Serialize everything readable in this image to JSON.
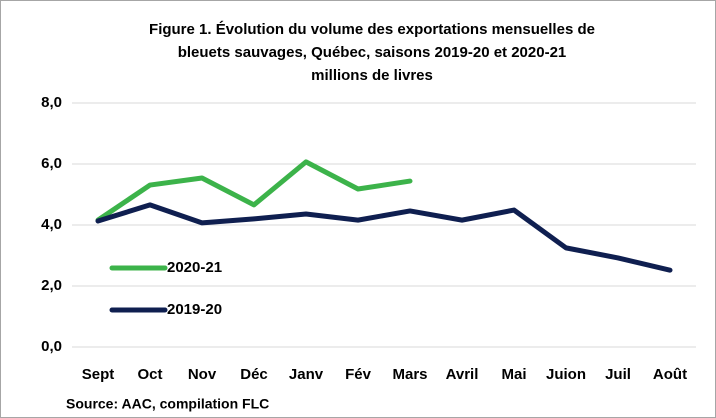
{
  "chart_data": {
    "type": "line",
    "title_lines": [
      "Figure 1. Évolution du volume des exportations mensuelles de",
      "bleuets sauvages, Québec, saisons 2019-20 et 2020-21"
    ],
    "subtitle": "millions de livres",
    "categories": [
      "Sept",
      "Oct",
      "Nov",
      "Déc",
      "Janv",
      "Fév",
      "Mars",
      "Avril",
      "Mai",
      "Juion",
      "Juil",
      "Août"
    ],
    "series": [
      {
        "name": "2020-21",
        "color": "#3cb34a",
        "values": [
          4.16,
          5.31,
          5.54,
          4.66,
          6.07,
          5.18,
          5.44,
          null,
          null,
          null,
          null,
          null
        ]
      },
      {
        "name": "2019-20",
        "color": "#0f1f50",
        "values": [
          4.13,
          4.66,
          4.07,
          4.2,
          4.36,
          4.16,
          4.46,
          4.16,
          4.49,
          3.25,
          2.92,
          2.52
        ]
      }
    ],
    "ylim": [
      0,
      8
    ],
    "yticks": [
      {
        "value": 0,
        "label": "0,0"
      },
      {
        "value": 2,
        "label": "2,0"
      },
      {
        "value": 4,
        "label": "4,0"
      },
      {
        "value": 6,
        "label": "6,0"
      },
      {
        "value": 8,
        "label": "8,0"
      }
    ],
    "grid": true,
    "legend": "left",
    "source": "Source: AAC, compilation FLC"
  }
}
